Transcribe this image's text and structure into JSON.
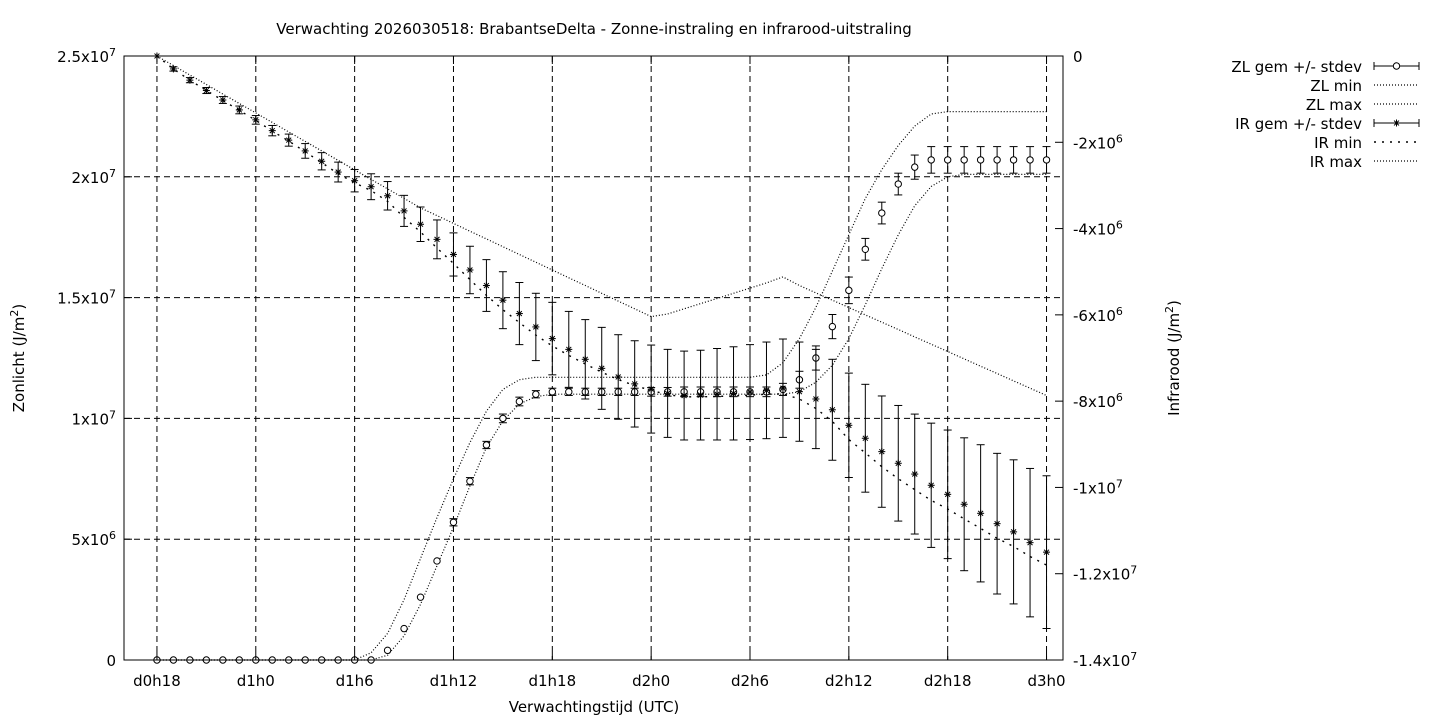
{
  "chart_data": {
    "type": "line",
    "title": "Verwachting 2026030518: BrabantseDelta - Zonne-instraling en infrarood-uitstraling",
    "xlabel": "Verwachtingstijd (UTC)",
    "ylabel": "Zonlicht (J/m²)",
    "ylabel_main": "Zonlicht (J/m",
    "ylabel_sup": "2",
    "ylabel_close": ")",
    "y2label": "Infrarood (J/m²)",
    "y2label_main": "Infrarood (J/m",
    "y2label_sup": "2",
    "y2label_close": ")",
    "x_unit": "hours since d0h18",
    "xlim": [
      -2,
      55
    ],
    "ylim": [
      0,
      25000000
    ],
    "y2lim": [
      -14000000,
      0
    ],
    "grid": true,
    "legend_position": "top-right outside",
    "x_ticks": [
      {
        "value": 0,
        "label": "d0h18"
      },
      {
        "value": 6,
        "label": "d1h0"
      },
      {
        "value": 12,
        "label": "d1h6"
      },
      {
        "value": 18,
        "label": "d1h12"
      },
      {
        "value": 24,
        "label": "d1h18"
      },
      {
        "value": 30,
        "label": "d2h0"
      },
      {
        "value": 36,
        "label": "d2h6"
      },
      {
        "value": 42,
        "label": "d2h12"
      },
      {
        "value": 48,
        "label": "d2h18"
      },
      {
        "value": 54,
        "label": "d3h0"
      }
    ],
    "y_ticks": [
      {
        "value": 0,
        "mant": "0",
        "exp": ""
      },
      {
        "value": 5000000,
        "mant": "5x10",
        "exp": "6"
      },
      {
        "value": 10000000,
        "mant": "1x10",
        "exp": "7"
      },
      {
        "value": 15000000,
        "mant": "1.5x10",
        "exp": "7"
      },
      {
        "value": 20000000,
        "mant": "2x10",
        "exp": "7"
      },
      {
        "value": 25000000,
        "mant": "2.5x10",
        "exp": "7"
      }
    ],
    "y2_ticks": [
      {
        "value": 0,
        "mant": "0",
        "exp": ""
      },
      {
        "value": -2000000,
        "mant": "-2x10",
        "exp": "6"
      },
      {
        "value": -4000000,
        "mant": "-4x10",
        "exp": "6"
      },
      {
        "value": -6000000,
        "mant": "-6x10",
        "exp": "6"
      },
      {
        "value": -8000000,
        "mant": "-8x10",
        "exp": "6"
      },
      {
        "value": -10000000,
        "mant": "-1x10",
        "exp": "7"
      },
      {
        "value": -12000000,
        "mant": "-1.2x10",
        "exp": "7"
      },
      {
        "value": -14000000,
        "mant": "-1.4x10",
        "exp": "7"
      }
    ],
    "legend": [
      {
        "label": "ZL gem +/- stdev",
        "style": "errorbar-circle"
      },
      {
        "label": "ZL min",
        "style": "dotted"
      },
      {
        "label": "ZL max",
        "style": "dotted"
      },
      {
        "label": "IR gem +/- stdev",
        "style": "errorbar-star"
      },
      {
        "label": "IR min",
        "style": "dotted-wide"
      },
      {
        "label": "IR max",
        "style": "dotted"
      }
    ],
    "series": [
      {
        "name": "ZL gem +/- stdev",
        "axis": "y",
        "marker": "circle",
        "x": [
          0,
          1,
          2,
          3,
          4,
          5,
          6,
          7,
          8,
          9,
          10,
          11,
          12,
          13,
          14,
          15,
          16,
          17,
          18,
          19,
          20,
          21,
          22,
          23,
          24,
          25,
          26,
          27,
          28,
          29,
          30,
          31,
          32,
          33,
          34,
          35,
          36,
          37,
          38,
          39,
          40,
          41,
          42,
          43,
          44,
          45,
          46,
          47,
          48,
          49,
          50,
          51,
          52,
          53,
          54
        ],
        "y": [
          0,
          0,
          0,
          0,
          0,
          0,
          0,
          0,
          0,
          0,
          0,
          0,
          0,
          0,
          400000,
          1300000,
          2600000,
          4100000,
          5700000,
          7400000,
          8900000,
          10000000,
          10700000,
          11000000,
          11100000,
          11100000,
          11100000,
          11100000,
          11100000,
          11100000,
          11100000,
          11100000,
          11100000,
          11100000,
          11100000,
          11100000,
          11100000,
          11100000,
          11200000,
          11600000,
          12500000,
          13800000,
          15300000,
          17000000,
          18500000,
          19700000,
          20400000,
          20700000,
          20700000,
          20700000,
          20700000,
          20700000,
          20700000,
          20700000,
          20700000
        ],
        "stdev": [
          0,
          0,
          0,
          0,
          0,
          0,
          0,
          0,
          0,
          0,
          0,
          0,
          0,
          0,
          0,
          0,
          0,
          0,
          150000,
          150000,
          150000,
          180000,
          180000,
          150000,
          150000,
          150000,
          150000,
          150000,
          150000,
          150000,
          180000,
          180000,
          200000,
          200000,
          200000,
          200000,
          200000,
          200000,
          250000,
          350000,
          500000,
          500000,
          550000,
          450000,
          450000,
          450000,
          500000,
          550000,
          550000,
          550000,
          550000,
          550000,
          550000,
          550000,
          550000
        ]
      },
      {
        "name": "ZL min",
        "axis": "y",
        "x": [
          0,
          1,
          2,
          3,
          4,
          5,
          6,
          7,
          8,
          9,
          10,
          11,
          12,
          13,
          14,
          15,
          16,
          17,
          18,
          19,
          20,
          21,
          22,
          23,
          24,
          25,
          26,
          27,
          28,
          29,
          30,
          31,
          32,
          33,
          34,
          35,
          36,
          37,
          38,
          39,
          40,
          41,
          42,
          43,
          44,
          45,
          46,
          47,
          48,
          49,
          50,
          51,
          52,
          53,
          54
        ],
        "y": [
          0,
          0,
          0,
          0,
          0,
          0,
          0,
          0,
          0,
          0,
          0,
          0,
          0,
          0,
          200000,
          1000000,
          2300000,
          3900000,
          5500000,
          7200000,
          8800000,
          9900000,
          10600000,
          10900000,
          11000000,
          11000000,
          11000000,
          11000000,
          11000000,
          11000000,
          11000000,
          11000000,
          11000000,
          11000000,
          11000000,
          11000000,
          11000000,
          11000000,
          11000000,
          11100000,
          11500000,
          12200000,
          13300000,
          14700000,
          16200000,
          17600000,
          18800000,
          19600000,
          20000000,
          20100000,
          20100000,
          20100000,
          20100000,
          20100000,
          20100000
        ]
      },
      {
        "name": "ZL max",
        "axis": "y",
        "x": [
          0,
          1,
          2,
          3,
          4,
          5,
          6,
          7,
          8,
          9,
          10,
          11,
          12,
          13,
          14,
          15,
          16,
          17,
          18,
          19,
          20,
          21,
          22,
          23,
          24,
          25,
          26,
          27,
          28,
          29,
          30,
          31,
          32,
          33,
          34,
          35,
          36,
          37,
          38,
          39,
          40,
          41,
          42,
          43,
          44,
          45,
          46,
          47,
          48,
          49,
          50,
          51,
          52,
          53,
          54
        ],
        "y": [
          0,
          0,
          0,
          0,
          0,
          0,
          0,
          0,
          0,
          0,
          0,
          0,
          0,
          300000,
          1100000,
          2500000,
          4200000,
          5900000,
          7500000,
          9000000,
          10300000,
          11200000,
          11600000,
          11700000,
          11700000,
          11700000,
          11700000,
          11700000,
          11700000,
          11700000,
          11700000,
          11700000,
          11700000,
          11700000,
          11700000,
          11700000,
          11700000,
          11800000,
          12300000,
          13300000,
          14600000,
          16100000,
          17600000,
          19100000,
          20300000,
          21300000,
          22100000,
          22600000,
          22700000,
          22700000,
          22700000,
          22700000,
          22700000,
          22700000,
          22700000
        ]
      },
      {
        "name": "IR gem +/- stdev",
        "axis": "y2",
        "marker": "star",
        "x": [
          0,
          1,
          2,
          3,
          4,
          5,
          6,
          7,
          8,
          9,
          10,
          11,
          12,
          13,
          14,
          15,
          16,
          17,
          18,
          19,
          20,
          21,
          22,
          23,
          24,
          25,
          26,
          27,
          28,
          29,
          30,
          31,
          32,
          33,
          34,
          35,
          36,
          37,
          38,
          39,
          40,
          41,
          42,
          43,
          44,
          45,
          46,
          47,
          48,
          49,
          50,
          51,
          52,
          53,
          54
        ],
        "y": [
          0,
          -300000,
          -560000,
          -800000,
          -1020000,
          -1250000,
          -1480000,
          -1730000,
          -1950000,
          -2200000,
          -2440000,
          -2690000,
          -2890000,
          -3030000,
          -3240000,
          -3590000,
          -3900000,
          -4250000,
          -4600000,
          -4960000,
          -5320000,
          -5660000,
          -5970000,
          -6280000,
          -6550000,
          -6800000,
          -7030000,
          -7240000,
          -7440000,
          -7600000,
          -7720000,
          -7820000,
          -7870000,
          -7860000,
          -7840000,
          -7820000,
          -7790000,
          -7750000,
          -7700000,
          -7780000,
          -7950000,
          -8200000,
          -8560000,
          -8860000,
          -9170000,
          -9440000,
          -9690000,
          -9950000,
          -10160000,
          -10390000,
          -10600000,
          -10840000,
          -11030000,
          -11280000,
          -11500000
        ],
        "stdev": [
          0,
          50000,
          60000,
          70000,
          80000,
          90000,
          100000,
          120000,
          140000,
          170000,
          200000,
          230000,
          260000,
          300000,
          330000,
          360000,
          400000,
          450000,
          500000,
          550000,
          600000,
          660000,
          720000,
          780000,
          840000,
          880000,
          920000,
          950000,
          980000,
          1000000,
          1020000,
          1020000,
          1030000,
          1040000,
          1060000,
          1080000,
          1100000,
          1120000,
          1140000,
          1150000,
          1150000,
          1170000,
          1210000,
          1250000,
          1290000,
          1340000,
          1390000,
          1440000,
          1490000,
          1540000,
          1590000,
          1630000,
          1670000,
          1720000,
          1770000
        ]
      },
      {
        "name": "IR min",
        "axis": "y2",
        "x": [
          0,
          1,
          2,
          3,
          4,
          5,
          6,
          7,
          8,
          9,
          10,
          11,
          12,
          13,
          14,
          15,
          16,
          17,
          18,
          19,
          20,
          21,
          22,
          23,
          24,
          25,
          26,
          27,
          28,
          29,
          30,
          31,
          32,
          33,
          34,
          35,
          36,
          37,
          38,
          39,
          40,
          41,
          42,
          43,
          44,
          45,
          46,
          47,
          48,
          49,
          50,
          51,
          52,
          53,
          54
        ],
        "y": [
          0,
          -300000,
          -560000,
          -800000,
          -1030000,
          -1260000,
          -1490000,
          -1740000,
          -1970000,
          -2220000,
          -2470000,
          -2730000,
          -2940000,
          -3120000,
          -3370000,
          -3740000,
          -4080000,
          -4450000,
          -4810000,
          -5180000,
          -5550000,
          -5880000,
          -6180000,
          -6470000,
          -6720000,
          -6940000,
          -7140000,
          -7330000,
          -7500000,
          -7640000,
          -7750000,
          -7850000,
          -7900000,
          -7900000,
          -7890000,
          -7880000,
          -7860000,
          -7840000,
          -7830000,
          -7950000,
          -8170000,
          -8470000,
          -8890000,
          -9200000,
          -9520000,
          -9800000,
          -10050000,
          -10300000,
          -10500000,
          -10730000,
          -10950000,
          -11180000,
          -11370000,
          -11600000,
          -11800000
        ]
      },
      {
        "name": "IR max",
        "axis": "y2",
        "x": [
          0,
          1,
          2,
          3,
          4,
          5,
          6,
          7,
          8,
          9,
          10,
          11,
          12,
          13,
          14,
          15,
          16,
          17,
          18,
          19,
          20,
          21,
          22,
          23,
          24,
          25,
          26,
          27,
          28,
          29,
          30,
          31,
          32,
          33,
          34,
          35,
          36,
          37,
          38,
          39,
          40,
          41,
          42,
          43,
          44,
          45,
          46,
          47,
          48,
          49,
          50,
          51,
          52,
          53,
          54
        ],
        "y": [
          0,
          -220000,
          -440000,
          -660000,
          -880000,
          -1100000,
          -1320000,
          -1540000,
          -1760000,
          -1980000,
          -2200000,
          -2420000,
          -2640000,
          -2860000,
          -3080000,
          -3300000,
          -3520000,
          -3700000,
          -3880000,
          -4060000,
          -4240000,
          -4420000,
          -4600000,
          -4780000,
          -4960000,
          -5140000,
          -5320000,
          -5500000,
          -5680000,
          -5860000,
          -6040000,
          -5980000,
          -5860000,
          -5740000,
          -5620000,
          -5500000,
          -5380000,
          -5260000,
          -5120000,
          -5320000,
          -5490000,
          -5660000,
          -5830000,
          -6000000,
          -6170000,
          -6340000,
          -6510000,
          -6680000,
          -6850000,
          -7020000,
          -7190000,
          -7360000,
          -7530000,
          -7700000,
          -7870000
        ]
      }
    ]
  }
}
